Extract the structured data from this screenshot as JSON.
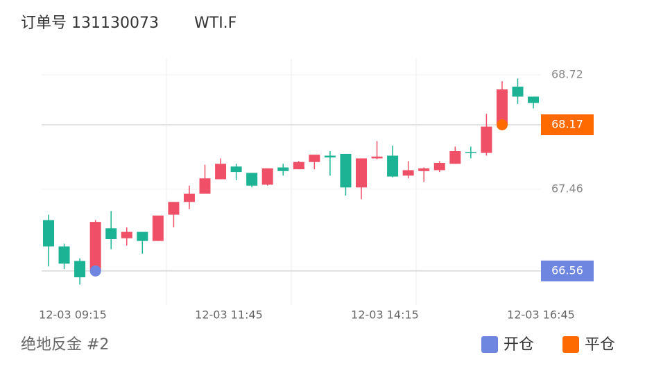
{
  "chart_data": {
    "type": "candlestick",
    "title": "订单号 131130073",
    "symbol": "WTI.F",
    "footer": "绝地反金 #2",
    "open": [
      67.12,
      66.83,
      66.67,
      66.56,
      67.03,
      66.92,
      66.99,
      66.89,
      67.18,
      67.32,
      67.41,
      67.57,
      67.71,
      67.64,
      67.51,
      67.7,
      67.68,
      67.76,
      67.83,
      67.85,
      67.48,
      67.8,
      67.83,
      67.61,
      67.66,
      67.67,
      67.74,
      67.87,
      67.86,
      68.17,
      68.59,
      68.48
    ],
    "high": [
      67.18,
      66.86,
      66.7,
      67.12,
      67.22,
      67.04,
      66.99,
      67.17,
      67.32,
      67.5,
      67.73,
      67.8,
      67.74,
      67.64,
      67.69,
      67.74,
      67.77,
      67.84,
      67.88,
      67.85,
      67.8,
      67.99,
      67.94,
      67.77,
      67.7,
      67.77,
      67.93,
      67.93,
      68.29,
      68.65,
      68.68,
      68.48
    ],
    "low": [
      66.61,
      66.58,
      66.41,
      66.56,
      66.8,
      66.84,
      66.75,
      66.89,
      67.04,
      67.24,
      67.41,
      67.57,
      67.56,
      67.48,
      67.5,
      67.61,
      67.68,
      67.68,
      67.61,
      67.39,
      67.35,
      67.79,
      67.59,
      67.58,
      67.54,
      67.65,
      67.74,
      67.8,
      67.83,
      68.15,
      68.4,
      68.35
    ],
    "close": [
      66.83,
      66.64,
      66.49,
      67.1,
      66.91,
      66.99,
      66.89,
      67.17,
      67.32,
      67.41,
      67.58,
      67.74,
      67.65,
      67.5,
      67.69,
      67.66,
      67.76,
      67.84,
      67.81,
      67.48,
      67.8,
      67.82,
      67.6,
      67.67,
      67.69,
      67.75,
      67.88,
      67.86,
      68.15,
      68.56,
      68.48,
      68.41
    ],
    "up_color": "#ef5067",
    "down_color": "#1bb394",
    "x_labels": [
      "12-03 09:15",
      "12-03 11:45",
      "12-03 14:15",
      "12-03 16:45"
    ],
    "ylim": [
      66.2,
      68.9
    ],
    "yticks": [
      68.72,
      67.46
    ],
    "markers": [
      {
        "name": "开仓",
        "color": "#6f86e0",
        "value": 66.56,
        "candle": 3
      },
      {
        "name": "平仓",
        "color": "#ff6a00",
        "value": 68.17,
        "candle": 29
      }
    ]
  }
}
